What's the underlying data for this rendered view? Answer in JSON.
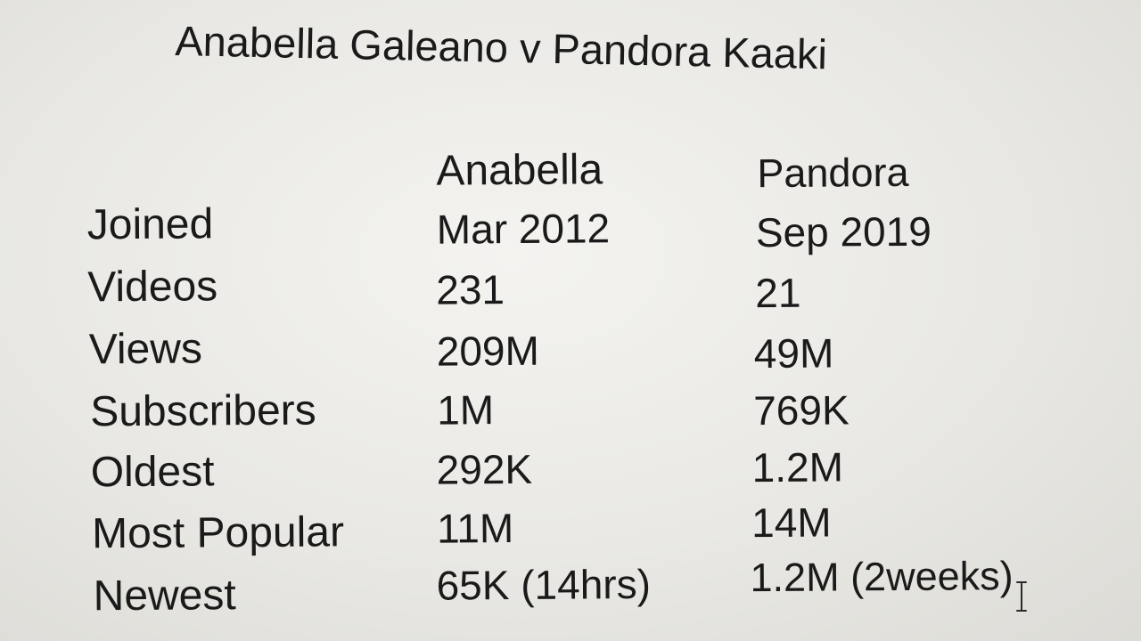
{
  "title": "Anabella Galeano v Pandora Kaaki",
  "columns": [
    "Anabella",
    "Pandora"
  ],
  "rows": [
    {
      "label": "Joined",
      "values": [
        "Mar 2012",
        "Sep 2019"
      ]
    },
    {
      "label": "Videos",
      "values": [
        "231",
        "21"
      ]
    },
    {
      "label": "Views",
      "values": [
        "209M",
        "49M"
      ]
    },
    {
      "label": "Subscribers",
      "values": [
        "1M",
        "769K"
      ]
    },
    {
      "label": "Oldest",
      "values": [
        "292K",
        "1.2M"
      ]
    },
    {
      "label": "Most Popular",
      "values": [
        "11M",
        "14M"
      ]
    },
    {
      "label": "Newest",
      "values": [
        "65K (14hrs)",
        "1.2M (2weeks)"
      ]
    }
  ],
  "cursor": {
    "icon": "text-cursor-icon"
  }
}
